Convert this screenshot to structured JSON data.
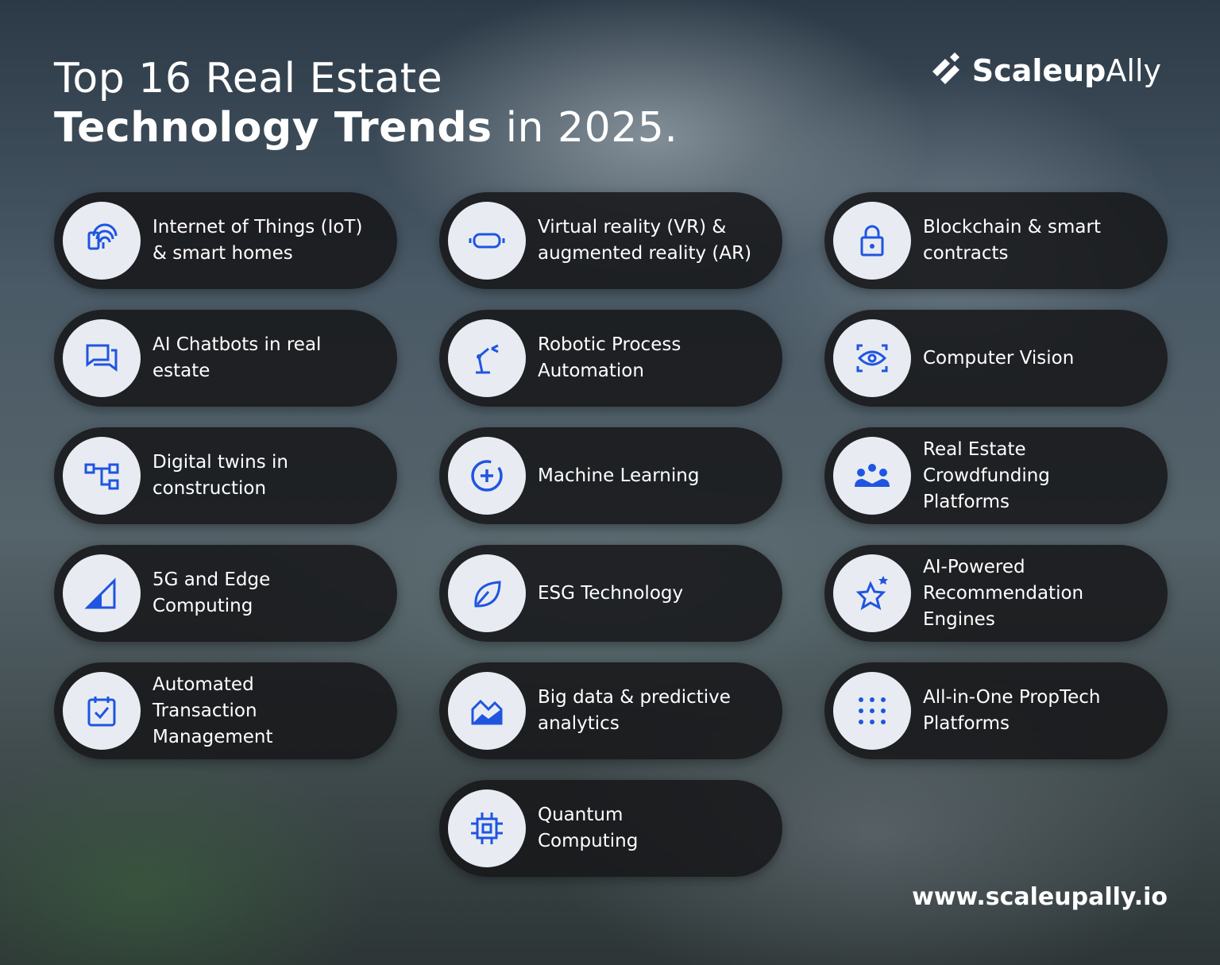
{
  "title": {
    "line1": "Top 16 Real Estate",
    "line2_bold": "Technology Trends",
    "line2_rest": " in 2025."
  },
  "logo": {
    "bold": "Scaleup",
    "light": "Ally"
  },
  "footer": {
    "url": "www.scaleupally.io"
  },
  "items": [
    {
      "lines": [
        "Internet of Things (IoT)",
        "& smart homes"
      ]
    },
    {
      "lines": [
        "Virtual reality (VR) &",
        "augmented reality (AR)"
      ]
    },
    {
      "lines": [
        "Blockchain & smart",
        "contracts"
      ]
    },
    {
      "lines": [
        "AI Chatbots in real",
        "estate"
      ]
    },
    {
      "lines": [
        "Robotic Process",
        "Automation"
      ]
    },
    {
      "lines": [
        "Computer Vision"
      ]
    },
    {
      "lines": [
        "Digital twins in",
        "construction"
      ]
    },
    {
      "lines": [
        "Machine Learning"
      ]
    },
    {
      "lines": [
        "Real Estate",
        "Crowdfunding",
        "Platforms"
      ]
    },
    {
      "lines": [
        "5G and Edge",
        "Computing"
      ]
    },
    {
      "lines": [
        "ESG Technology"
      ]
    },
    {
      "lines": [
        "AI-Powered",
        "Recommendation",
        "Engines"
      ]
    },
    {
      "lines": [
        "Automated",
        "Transaction",
        "Management"
      ]
    },
    {
      "lines": [
        "Big data & predictive",
        "analytics"
      ]
    },
    {
      "lines": [
        "All-in-One PropTech",
        "Platforms"
      ]
    },
    {
      "lines": [
        "Quantum",
        "Computing"
      ]
    }
  ]
}
